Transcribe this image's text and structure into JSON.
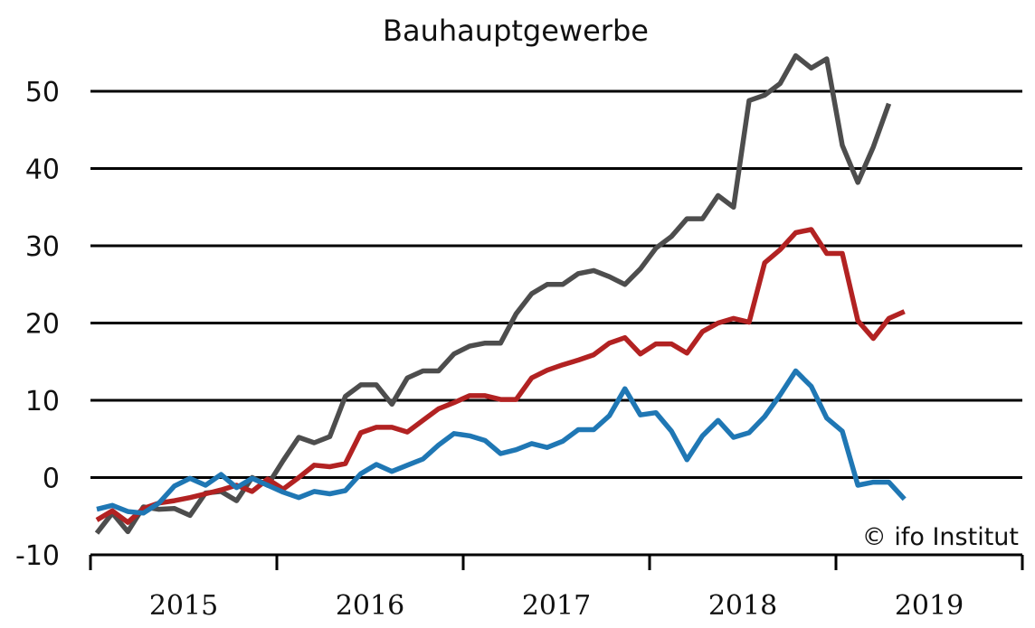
{
  "chart_data": {
    "type": "line",
    "title": "Bauhauptgewerbe",
    "credit": "© ifo Institut",
    "ylim": [
      -10,
      55
    ],
    "y_ticks": [
      50,
      40,
      30,
      20,
      10,
      0,
      -10
    ],
    "y_tick_labels": [
      "50",
      "40",
      "30",
      "20",
      "10",
      "0",
      "-10"
    ],
    "x_tick_labels": [
      "2015",
      "2016",
      "2017",
      "2018",
      "2019"
    ],
    "x_start_month": "2015-01",
    "x_end_month": "2019-12",
    "grid": "horizontal",
    "legend": "none",
    "series": [
      {
        "color": "#4d4d4d",
        "values": [
          -7.2,
          -4.6,
          -7.0,
          -3.8,
          -4.1,
          -4.0,
          -4.9,
          -2.0,
          -1.8,
          -3.0,
          0.0,
          -1.0,
          2.2,
          5.2,
          4.5,
          5.3,
          10.5,
          12.0,
          12.0,
          9.5,
          12.9,
          13.8,
          13.8,
          16.0,
          17.0,
          17.4,
          17.4,
          21.2,
          23.8,
          25.0,
          25.0,
          26.4,
          26.8,
          26.0,
          25.0,
          27.0,
          29.7,
          31.2,
          33.5,
          33.5,
          36.5,
          35.0,
          48.8,
          49.5,
          51.0,
          54.6,
          53.0,
          54.2,
          43.0,
          38.2,
          42.8,
          48.4
        ]
      },
      {
        "color": "#b22222",
        "values": [
          -5.5,
          -4.3,
          -5.8,
          -4.0,
          -3.3,
          -3.0,
          -2.6,
          -2.1,
          -1.6,
          -1.0,
          -1.8,
          -0.2,
          -1.5,
          0.0,
          1.6,
          1.4,
          1.8,
          5.8,
          6.5,
          6.5,
          5.9,
          7.4,
          8.9,
          9.7,
          10.6,
          10.6,
          10.1,
          10.1,
          12.9,
          13.9,
          14.6,
          15.2,
          15.9,
          17.4,
          18.1,
          16.0,
          17.3,
          17.3,
          16.1,
          18.9,
          20.0,
          20.6,
          20.1,
          27.8,
          29.5,
          31.7,
          32.1,
          29.0,
          29.0,
          20.3,
          18.0,
          20.6,
          21.5
        ]
      },
      {
        "color": "#1f77b4",
        "values": [
          -4.1,
          -3.6,
          -4.4,
          -4.6,
          -3.3,
          -1.1,
          -0.1,
          -1.0,
          0.4,
          -1.3,
          -0.1,
          -1.0,
          -1.9,
          -2.6,
          -1.8,
          -2.1,
          -1.7,
          0.5,
          1.7,
          0.8,
          1.6,
          2.4,
          4.2,
          5.7,
          5.4,
          4.8,
          3.1,
          3.6,
          4.4,
          3.9,
          4.7,
          6.2,
          6.2,
          8.0,
          11.5,
          8.1,
          8.4,
          6.0,
          2.3,
          5.4,
          7.4,
          5.2,
          5.8,
          7.9,
          10.7,
          13.8,
          11.8,
          7.7,
          6.0,
          -1.0,
          -0.6,
          -0.6,
          -2.8
        ]
      }
    ]
  }
}
